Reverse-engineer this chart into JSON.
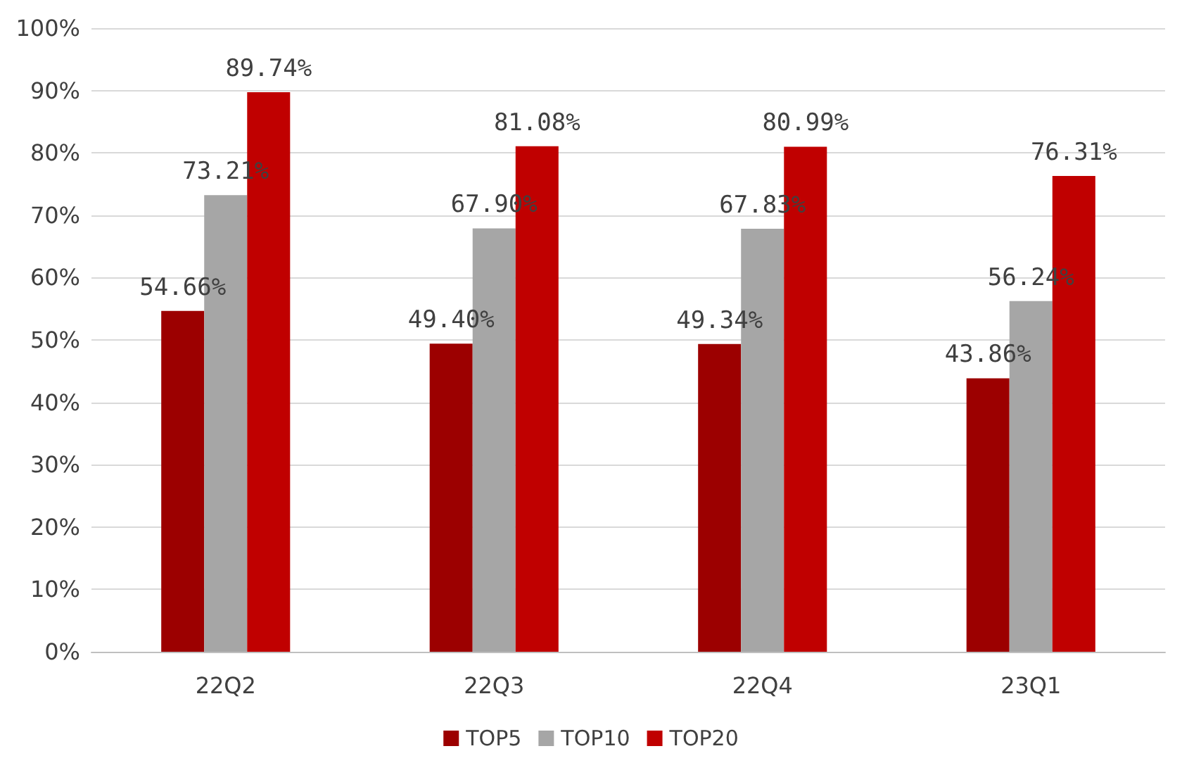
{
  "chart_data": {
    "type": "bar",
    "categories": [
      "22Q2",
      "22Q3",
      "22Q4",
      "23Q1"
    ],
    "series": [
      {
        "name": "TOP5",
        "color": "#9c0000",
        "values": [
          54.66,
          49.4,
          49.34,
          43.86
        ],
        "value_labels": [
          "54.66%",
          "49.40%",
          "49.34%",
          "43.86%"
        ]
      },
      {
        "name": "TOP10",
        "color": "#a6a6a6",
        "values": [
          73.21,
          67.9,
          67.83,
          56.24
        ],
        "value_labels": [
          "73.21%",
          "67.90%",
          "67.83%",
          "56.24%"
        ]
      },
      {
        "name": "TOP20",
        "color": "#c00000",
        "values": [
          89.74,
          81.08,
          80.99,
          76.31
        ],
        "value_labels": [
          "89.74%",
          "81.08%",
          "80.99%",
          "76.31%"
        ]
      }
    ],
    "ylim": [
      0,
      100
    ],
    "yticks": [
      {
        "value": 0,
        "label": "0%"
      },
      {
        "value": 10,
        "label": "10%"
      },
      {
        "value": 20,
        "label": "20%"
      },
      {
        "value": 30,
        "label": "30%"
      },
      {
        "value": 40,
        "label": "40%"
      },
      {
        "value": 50,
        "label": "50%"
      },
      {
        "value": 60,
        "label": "60%"
      },
      {
        "value": 70,
        "label": "70%"
      },
      {
        "value": 80,
        "label": "80%"
      },
      {
        "value": 90,
        "label": "90%"
      },
      {
        "value": 100,
        "label": "100%"
      }
    ],
    "grid": "y",
    "legend": "bottom"
  }
}
